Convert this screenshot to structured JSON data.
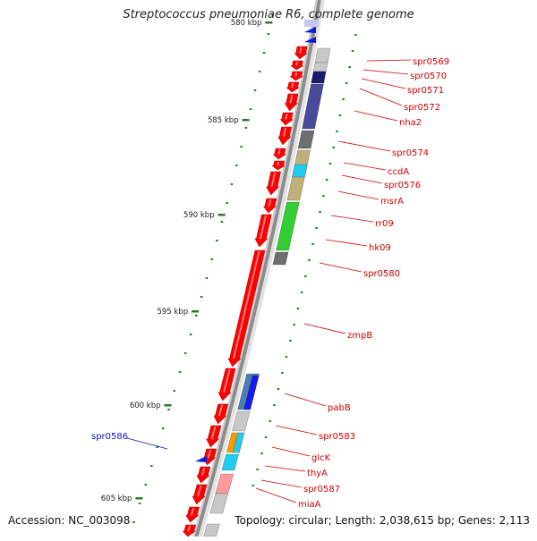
{
  "title": "Streptococcus pneumoniae R6, complete genome",
  "footer": {
    "accession": "Accession: NC_003098",
    "topology": "Topology: circular; Length: 2,038,615 bp; Genes: 2,113"
  },
  "colors": {
    "backbone": "#8c8c8c",
    "forward_gene": "#ff0000",
    "tick": "#2a7a2a",
    "label": "#cc0000",
    "highlight_label": "#1010c0",
    "cog_slate": "#4a4a9a",
    "cog_gray": "#6e6e6e",
    "cog_khaki": "#bfb07a",
    "cog_cyan": "#22ccee",
    "cog_green": "#33cc33",
    "cog_steelblue": "#4a7fb0",
    "cog_blue": "#1a1aee",
    "cog_light": "#c8c8c8",
    "cog_orange": "#ff9900",
    "cog_pink": "#ff9a9a"
  },
  "scale_labels": [
    "580 kbp",
    "585 kbp",
    "590 kbp",
    "595 kbp",
    "600 kbp",
    "605 kbp"
  ],
  "gene_labels": [
    "spr0569",
    "spr0570",
    "spr0571",
    "spr0572",
    "nha2",
    "spr0574",
    "ccdA",
    "spr0576",
    "msrA",
    "rr09",
    "hk09",
    "spr0580",
    "zmpB",
    "pabB",
    "spr0583",
    "glcK",
    "thyA",
    "spr0587",
    "miaA"
  ],
  "highlight_label": "spr0586",
  "marker_icons": [
    "blue-triangle-icon",
    "blue-triangle-icon",
    "blue-triangle-icon"
  ]
}
